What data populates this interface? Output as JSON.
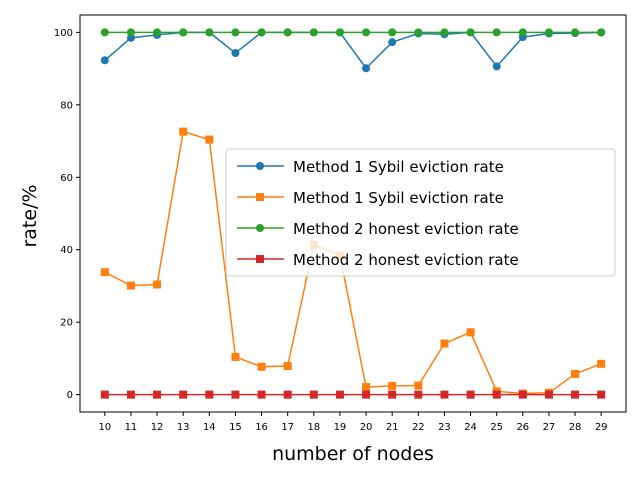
{
  "chart_data": {
    "type": "line",
    "xlabel": "number of nodes",
    "ylabel": "rate/%",
    "x": [
      10,
      11,
      12,
      13,
      14,
      15,
      16,
      17,
      18,
      19,
      20,
      21,
      22,
      23,
      24,
      25,
      26,
      27,
      28,
      29
    ],
    "xticks": [
      "10",
      "11",
      "12",
      "13",
      "14",
      "15",
      "16",
      "17",
      "18",
      "19",
      "20",
      "21",
      "22",
      "23",
      "24",
      "25",
      "26",
      "27",
      "28",
      "29"
    ],
    "yticks": [
      "0",
      "20",
      "40",
      "60",
      "80",
      "100"
    ],
    "ylim": [
      -4.8,
      104.8
    ],
    "grid": false,
    "legend_position": "center-right",
    "series": [
      {
        "name": "Method 1 Sybil eviction rate",
        "color": "#1f77b4",
        "marker": "circle",
        "values": [
          92.3,
          98.5,
          99.3,
          100,
          100,
          94.3,
          100,
          100,
          100,
          100,
          90.1,
          97.3,
          99.7,
          99.5,
          100,
          90.6,
          98.7,
          99.7,
          99.8,
          100
        ]
      },
      {
        "name": "Method 1 Sybil eviction rate",
        "color": "#ff7f0e",
        "marker": "square",
        "values": [
          33.8,
          30.1,
          30.4,
          72.6,
          70.4,
          10.4,
          7.7,
          7.9,
          41.4,
          38.4,
          2.1,
          2.4,
          2.5,
          14.1,
          17.2,
          0.9,
          0.3,
          0.5,
          5.7,
          8.5
        ]
      },
      {
        "name": "Method 2 honest eviction rate",
        "color": "#2ca02c",
        "marker": "circle",
        "values": [
          100,
          100,
          100,
          100,
          100,
          100,
          100,
          100,
          100,
          100,
          100,
          100,
          100,
          100,
          100,
          100,
          100,
          100,
          100,
          100
        ]
      },
      {
        "name": "Method 2 honest eviction rate",
        "color": "#d62728",
        "marker": "square",
        "values": [
          0,
          0,
          0,
          0,
          0,
          0,
          0,
          0,
          0,
          0,
          0,
          0,
          0,
          0,
          0,
          0,
          0,
          0,
          0,
          0
        ]
      }
    ]
  }
}
